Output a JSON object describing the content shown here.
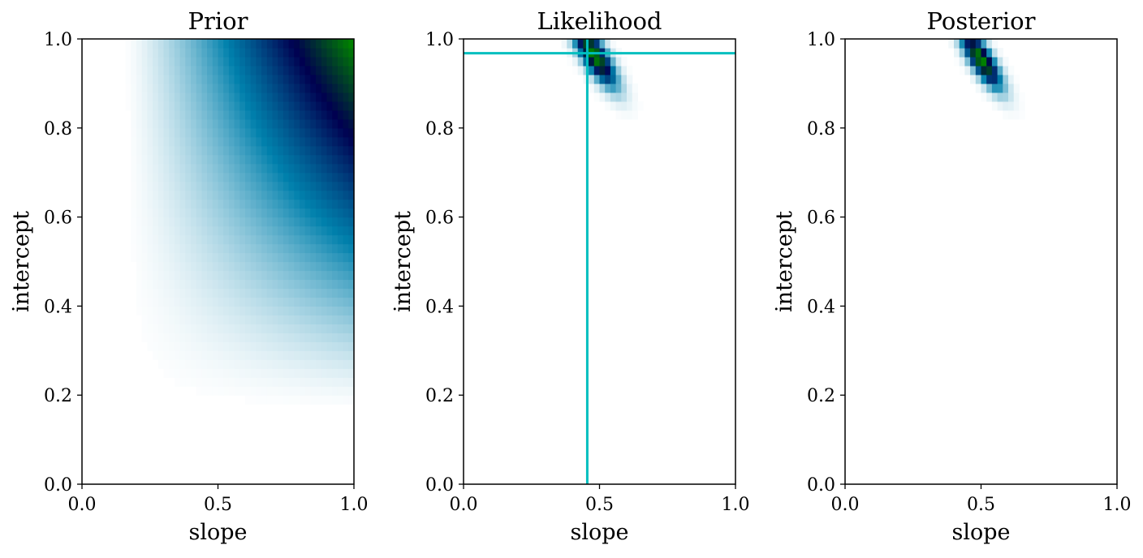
{
  "chart_data": [
    {
      "type": "heatmap",
      "title": "Prior",
      "xlabel": "slope",
      "ylabel": "intercept",
      "xlim": [
        0.0,
        1.0
      ],
      "ylim": [
        0.0,
        1.0
      ],
      "xticks": [
        "0.0",
        "0.5",
        "1.0"
      ],
      "yticks": [
        "0.0",
        "0.2",
        "0.4",
        "0.6",
        "0.8",
        "1.0"
      ],
      "colormap": [
        "#ffffff",
        "#0080ac",
        "#000050",
        "#008000"
      ],
      "density": {
        "kind": "product_power",
        "slope_min": 0.15,
        "intercept_min": 0.16,
        "exponent": 1.4
      }
    },
    {
      "type": "heatmap",
      "title": "Likelihood",
      "xlabel": "slope",
      "ylabel": "intercept",
      "xlim": [
        0.0,
        1.0
      ],
      "ylim": [
        0.0,
        1.0
      ],
      "xticks": [
        "0.0",
        "0.5",
        "1.0"
      ],
      "yticks": [
        "0.0",
        "0.2",
        "0.4",
        "0.6",
        "0.8",
        "1.0"
      ],
      "colormap": [
        "#ffffff",
        "#0080ac",
        "#000050",
        "#008000"
      ],
      "density": {
        "kind": "gaussian",
        "center": [
          0.48,
          0.965
        ],
        "sigma_major": 0.065,
        "sigma_minor": 0.022,
        "angle_deg": -40
      },
      "reference_lines": {
        "slope": 0.455,
        "intercept": 0.968,
        "color": "#00bfbf"
      }
    },
    {
      "type": "heatmap",
      "title": "Posterior",
      "xlabel": "slope",
      "ylabel": "intercept",
      "xlim": [
        0.0,
        1.0
      ],
      "ylim": [
        0.0,
        1.0
      ],
      "xticks": [
        "0.0",
        "0.5",
        "1.0"
      ],
      "yticks": [
        "0.0",
        "0.2",
        "0.4",
        "0.6",
        "0.8",
        "1.0"
      ],
      "colormap": [
        "#ffffff",
        "#0080ac",
        "#000050",
        "#008000"
      ],
      "density": {
        "kind": "gaussian",
        "center": [
          0.5,
          0.955
        ],
        "sigma_major": 0.06,
        "sigma_minor": 0.02,
        "angle_deg": -40
      }
    }
  ]
}
